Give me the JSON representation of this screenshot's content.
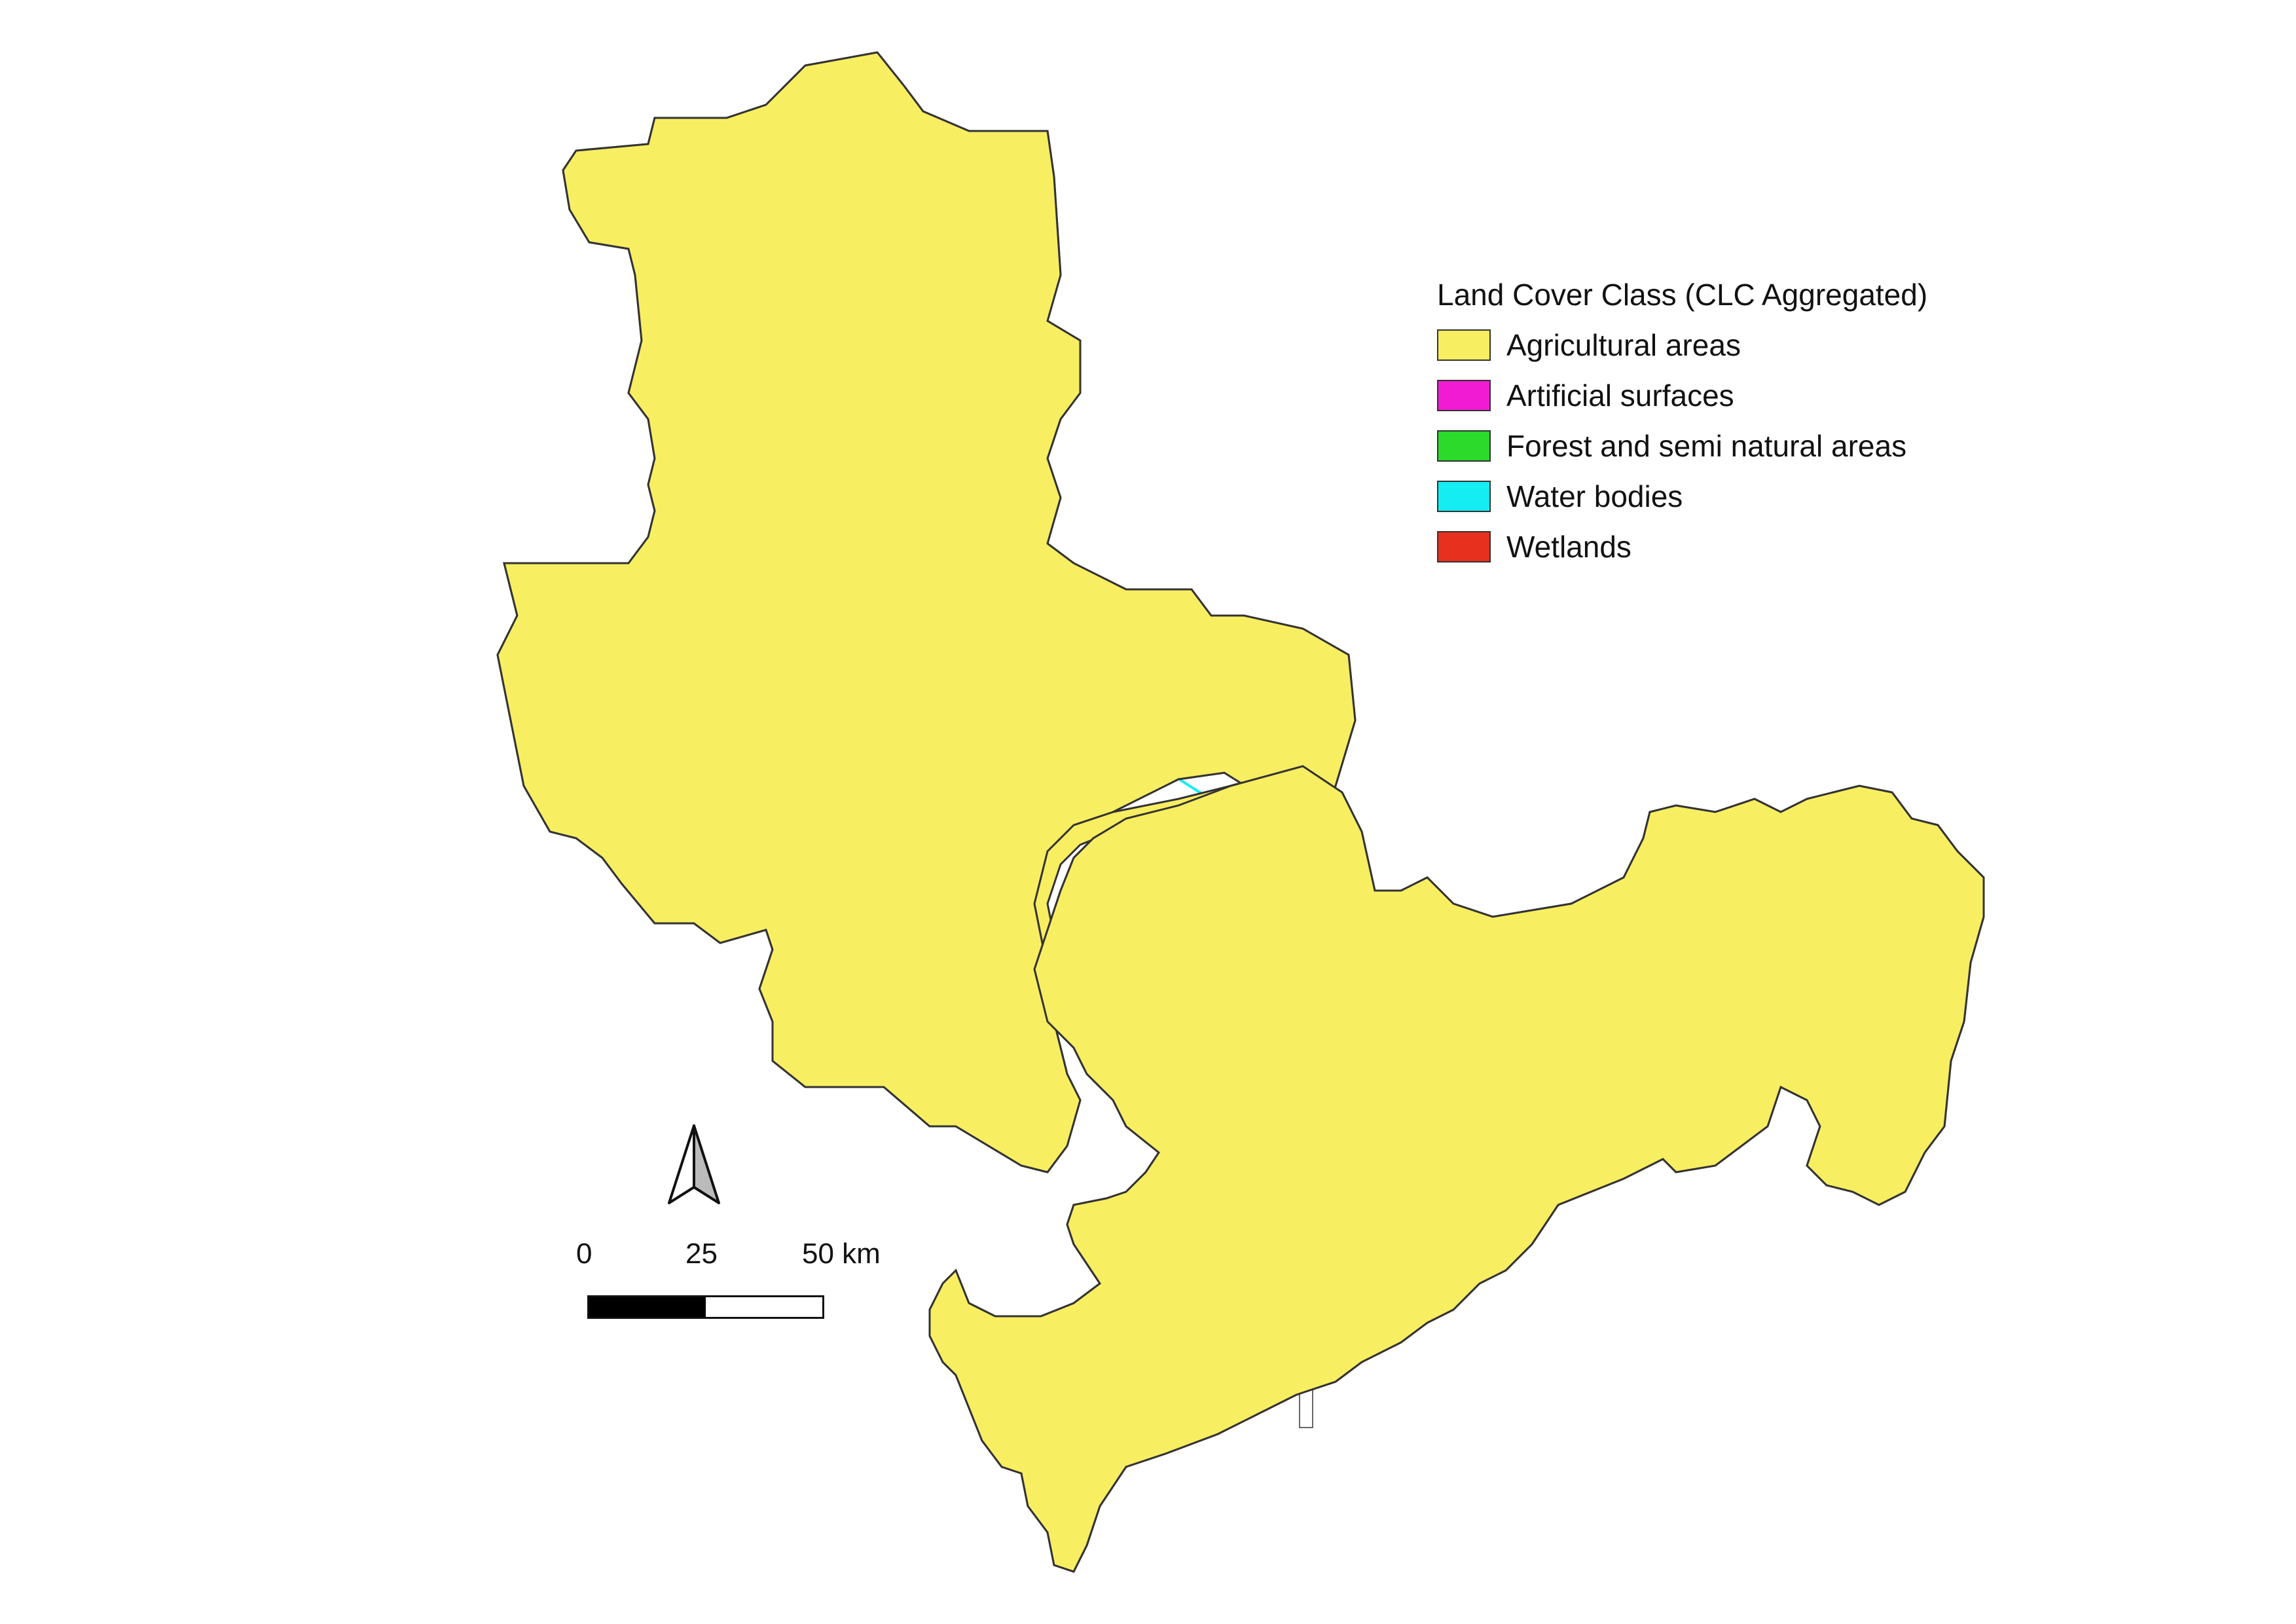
{
  "colors": {
    "agricultural": "#F8EE62",
    "artificial": "#F01BD3",
    "forest": "#2BDA2B",
    "water": "#14EEF2",
    "wetlands": "#E8301E",
    "outline": "#333333"
  },
  "legend": {
    "title": "Land Cover Class (CLC Aggregated)",
    "items": [
      {
        "label": "Agricultural areas",
        "color": "#F8EE62"
      },
      {
        "label": "Artificial surfaces",
        "color": "#F01BD3"
      },
      {
        "label": "Forest and semi natural areas",
        "color": "#2BDA2B"
      },
      {
        "label": "Water bodies",
        "color": "#14EEF2"
      },
      {
        "label": "Wetlands",
        "color": "#E8301E"
      }
    ]
  },
  "north_arrow": {
    "icon": "north-arrow-icon"
  },
  "scalebar": {
    "tick_0": "0",
    "tick_1": "25",
    "tick_2": "50 km",
    "segment_colors": [
      "#000000",
      "#ffffff"
    ]
  }
}
